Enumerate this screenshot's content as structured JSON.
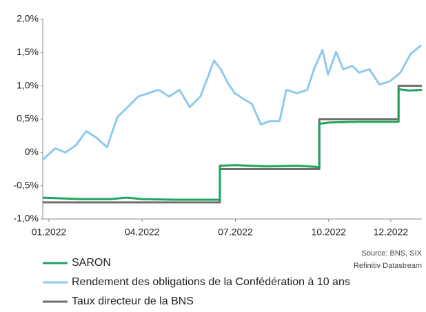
{
  "chart_data": {
    "type": "line",
    "xlim": [
      0.8,
      13
    ],
    "xticks": [
      {
        "value": 1,
        "label": "01.2022"
      },
      {
        "value": 4,
        "label": "04.2022"
      },
      {
        "value": 7,
        "label": "07.2022"
      },
      {
        "value": 10,
        "label": "10.2022"
      },
      {
        "value": 12,
        "label": "12.2022"
      }
    ],
    "ylim": [
      -1,
      2
    ],
    "yticks": [
      {
        "value": -1,
        "label": "-1,0%"
      },
      {
        "value": -0.5,
        "label": "-0,5%"
      },
      {
        "value": 0,
        "label": "0%"
      },
      {
        "value": 0.5,
        "label": "0,5%"
      },
      {
        "value": 1,
        "label": "1,0%"
      },
      {
        "value": 1.5,
        "label": "1,5%"
      },
      {
        "value": 2,
        "label": "2,0%"
      }
    ],
    "grid": false,
    "source": [
      "Source: BNS, SIX",
      "Refinitiv Datastream"
    ],
    "series": [
      {
        "name": "SARON",
        "color": "#1fa35c",
        "x": [
          0.8,
          2,
          3,
          3.5,
          4,
          5,
          6.5,
          6.5,
          7,
          8,
          9,
          9.7,
          9.7,
          10,
          11,
          12,
          12.25,
          12.25,
          12.6,
          13
        ],
        "values": [
          -0.68,
          -0.7,
          -0.7,
          -0.68,
          -0.7,
          -0.71,
          -0.71,
          -0.2,
          -0.19,
          -0.21,
          -0.2,
          -0.22,
          0.43,
          0.45,
          0.46,
          0.46,
          0.46,
          0.95,
          0.93,
          0.94
        ]
      },
      {
        "name": "Rendement des obligations de la Confédération à 10 ans",
        "color": "#8ec9ee",
        "x": [
          0.8,
          1.2,
          1.53,
          1.87,
          2.2,
          2.53,
          2.87,
          3.2,
          3.53,
          3.87,
          4.2,
          4.53,
          4.87,
          5.2,
          5.53,
          5.87,
          6.09,
          6.31,
          6.53,
          6.76,
          6.98,
          7.31,
          7.53,
          7.82,
          8.09,
          8.42,
          8.64,
          8.98,
          9.31,
          9.53,
          9.8,
          9.98,
          10.24,
          10.47,
          10.76,
          10.98,
          11.31,
          11.64,
          11.98,
          12.31,
          12.64,
          12.98
        ],
        "values": [
          -0.11,
          0.06,
          0,
          0.11,
          0.32,
          0.22,
          0.08,
          0.53,
          0.68,
          0.84,
          0.89,
          0.94,
          0.84,
          0.94,
          0.68,
          0.84,
          1.1,
          1.38,
          1.25,
          1.04,
          0.89,
          0.79,
          0.73,
          0.42,
          0.47,
          0.47,
          0.94,
          0.89,
          0.94,
          1.25,
          1.54,
          1.17,
          1.51,
          1.25,
          1.3,
          1.2,
          1.25,
          1.02,
          1.07,
          1.2,
          1.48,
          1.61
        ]
      },
      {
        "name": "Taux directeur de la BNS",
        "color": "#6d6d6d",
        "x": [
          0.8,
          6.5,
          6.5,
          9.7,
          9.7,
          12.25,
          12.25,
          13
        ],
        "values": [
          -0.75,
          -0.75,
          -0.25,
          -0.25,
          0.5,
          0.5,
          1,
          1
        ]
      }
    ]
  }
}
